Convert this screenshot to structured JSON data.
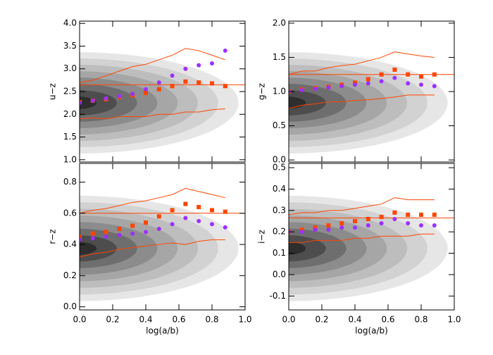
{
  "chart_data": [
    {
      "type": "scatter",
      "ylabel": "u−z",
      "xlim": [
        0,
        1
      ],
      "xticks": [
        {
          "value": 0,
          "label": "0.0"
        },
        0.2,
        0.4,
        0.6,
        0.8,
        {
          "value": 1,
          "label": "1.0"
        }
      ],
      "ylim": [
        0.95,
        4.05
      ],
      "yticks": [
        {
          "value": 1,
          "label": "1.0"
        },
        1.5,
        {
          "value": 2,
          "label": "2.0"
        },
        2.5,
        {
          "value": 3,
          "label": "3.0"
        },
        3.5,
        {
          "value": 4,
          "label": "4.0"
        }
      ],
      "x": [
        0,
        0.08,
        0.16,
        0.24,
        0.32,
        0.4,
        0.48,
        0.56,
        0.64,
        0.72,
        0.8,
        0.88
      ],
      "reference_line": 2.65,
      "series": [
        {
          "marker": "square",
          "color": "#ff4500",
          "values": [
            2.27,
            2.3,
            2.33,
            2.38,
            2.42,
            2.47,
            2.55,
            2.62,
            2.72,
            2.7,
            2.68,
            2.62
          ]
        },
        {
          "marker": "circle",
          "color": "#9b30ff",
          "values": [
            2.25,
            2.3,
            2.35,
            2.4,
            2.45,
            2.55,
            2.7,
            2.85,
            3.0,
            3.08,
            3.12,
            3.4
          ]
        },
        {
          "marker": "line",
          "color": "#ff4500",
          "values": [
            2.7,
            2.75,
            2.85,
            2.95,
            3.05,
            3.1,
            3.2,
            3.3,
            3.45,
            3.4,
            3.3,
            3.2
          ]
        },
        {
          "marker": "line",
          "color": "#ff4500",
          "values": [
            1.9,
            1.92,
            1.9,
            1.95,
            1.95,
            1.95,
            2.0,
            2.0,
            2.05,
            2.05,
            2.1,
            2.12
          ]
        }
      ]
    },
    {
      "type": "scatter",
      "ylabel": "g−z",
      "xlim": [
        0,
        1
      ],
      "xticks": [
        {
          "value": 0,
          "label": "0.0"
        },
        0.2,
        0.4,
        0.6,
        0.8,
        {
          "value": 1,
          "label": "1.0"
        }
      ],
      "ylim": [
        -0.03,
        2.03
      ],
      "yticks": [
        {
          "value": 0,
          "label": "0.0"
        },
        0.5,
        {
          "value": 1,
          "label": "1.0"
        },
        1.5,
        {
          "value": 2,
          "label": "2.0"
        }
      ],
      "x": [
        0,
        0.08,
        0.16,
        0.24,
        0.32,
        0.4,
        0.48,
        0.56,
        0.64,
        0.72,
        0.8,
        0.88
      ],
      "reference_line": 1.25,
      "series": [
        {
          "marker": "square",
          "color": "#ff4500",
          "values": [
            1.0,
            1.03,
            1.05,
            1.07,
            1.1,
            1.13,
            1.18,
            1.25,
            1.32,
            1.25,
            1.22,
            1.25
          ]
        },
        {
          "marker": "circle",
          "color": "#9b30ff",
          "values": [
            1.0,
            1.02,
            1.04,
            1.06,
            1.08,
            1.1,
            1.12,
            1.15,
            1.2,
            1.12,
            1.1,
            1.08
          ]
        },
        {
          "marker": "line",
          "color": "#ff4500",
          "values": [
            1.25,
            1.3,
            1.3,
            1.35,
            1.38,
            1.4,
            1.45,
            1.5,
            1.58,
            1.55,
            1.52,
            1.5
          ]
        },
        {
          "marker": "line",
          "color": "#ff4500",
          "values": [
            0.75,
            0.8,
            0.82,
            0.85,
            0.85,
            0.87,
            0.88,
            0.9,
            0.92,
            0.95,
            0.95,
            0.95
          ]
        }
      ]
    },
    {
      "type": "scatter",
      "ylabel": "r−z",
      "xlabel": "log(a/b)",
      "xlim": [
        0,
        1
      ],
      "xticks": [
        {
          "value": 0,
          "label": "0.0"
        },
        0.2,
        0.4,
        0.6,
        0.8,
        {
          "value": 1,
          "label": "1.0"
        }
      ],
      "ylim": [
        -0.02,
        0.92
      ],
      "yticks": [
        {
          "value": 0,
          "label": "0.0"
        },
        0.2,
        0.4,
        0.6,
        0.8
      ],
      "x": [
        0,
        0.08,
        0.16,
        0.24,
        0.32,
        0.4,
        0.48,
        0.56,
        0.64,
        0.72,
        0.8,
        0.88
      ],
      "reference_line": 0.6,
      "series": [
        {
          "marker": "square",
          "color": "#ff4500",
          "values": [
            0.45,
            0.47,
            0.48,
            0.5,
            0.52,
            0.54,
            0.58,
            0.62,
            0.66,
            0.64,
            0.62,
            0.61
          ]
        },
        {
          "marker": "circle",
          "color": "#9b30ff",
          "values": [
            0.43,
            0.44,
            0.45,
            0.46,
            0.47,
            0.48,
            0.5,
            0.53,
            0.57,
            0.55,
            0.53,
            0.51
          ]
        },
        {
          "marker": "line",
          "color": "#ff4500",
          "values": [
            0.6,
            0.62,
            0.63,
            0.65,
            0.67,
            0.68,
            0.7,
            0.72,
            0.76,
            0.74,
            0.72,
            0.7
          ]
        },
        {
          "marker": "line",
          "color": "#ff4500",
          "values": [
            0.32,
            0.34,
            0.35,
            0.37,
            0.38,
            0.39,
            0.4,
            0.41,
            0.4,
            0.42,
            0.43,
            0.43
          ]
        }
      ]
    },
    {
      "type": "scatter",
      "ylabel": "i−z",
      "xlabel": "log(a/b)",
      "xlim": [
        0,
        1
      ],
      "xticks": [
        {
          "value": 0,
          "label": "0.0"
        },
        0.2,
        0.4,
        0.6,
        0.8,
        {
          "value": 1,
          "label": "1.0"
        }
      ],
      "ylim": [
        -0.165,
        0.52
      ],
      "yticks": [
        -0.1,
        {
          "value": 0,
          "label": "0.0"
        },
        0.1,
        0.2,
        0.3,
        0.4,
        0.5
      ],
      "x": [
        0,
        0.08,
        0.16,
        0.24,
        0.32,
        0.4,
        0.48,
        0.56,
        0.64,
        0.72,
        0.8,
        0.88
      ],
      "reference_line": 0.265,
      "series": [
        {
          "marker": "square",
          "color": "#ff4500",
          "values": [
            0.2,
            0.21,
            0.22,
            0.23,
            0.24,
            0.25,
            0.26,
            0.27,
            0.29,
            0.28,
            0.28,
            0.28
          ]
        },
        {
          "marker": "circle",
          "color": "#9b30ff",
          "values": [
            0.2,
            0.2,
            0.21,
            0.21,
            0.22,
            0.22,
            0.23,
            0.24,
            0.26,
            0.24,
            0.23,
            0.23
          ]
        },
        {
          "marker": "line",
          "color": "#ff4500",
          "values": [
            0.28,
            0.29,
            0.29,
            0.3,
            0.3,
            0.31,
            0.32,
            0.33,
            0.36,
            0.35,
            0.35,
            0.35
          ]
        },
        {
          "marker": "line",
          "color": "#ff4500",
          "values": [
            0.15,
            0.15,
            0.16,
            0.16,
            0.16,
            0.17,
            0.17,
            0.18,
            0.18,
            0.18,
            0.19,
            0.19
          ]
        }
      ]
    }
  ]
}
